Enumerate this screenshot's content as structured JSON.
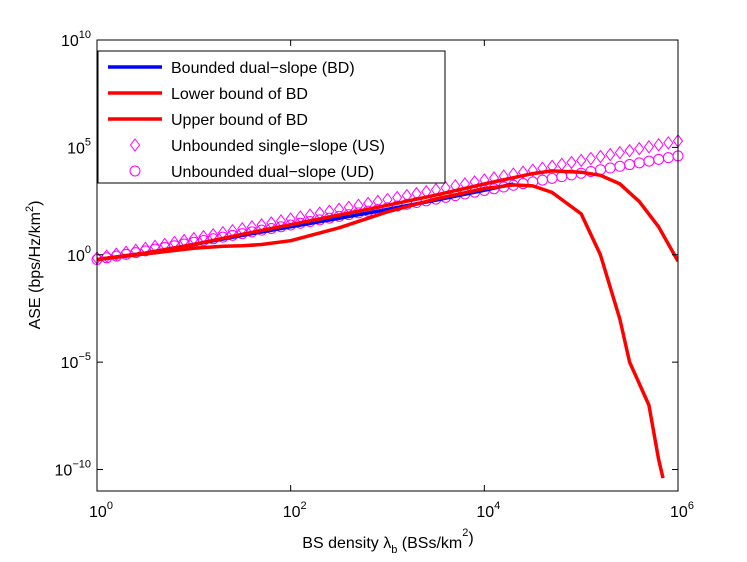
{
  "chart_data": {
    "type": "line",
    "xlabel": "BS density λ_b (BSs/km²)",
    "ylabel": "ASE (bps/Hz/km²)",
    "xscale": "log",
    "yscale": "log",
    "xlim": [
      1,
      1000000
    ],
    "ylim": [
      1e-11,
      10000000000.0
    ],
    "grid": false,
    "legend_position": "top-left",
    "x_ticks": [
      {
        "value": 1,
        "base": "10",
        "exp": "0"
      },
      {
        "value": 100,
        "base": "10",
        "exp": "2"
      },
      {
        "value": 10000,
        "base": "10",
        "exp": "4"
      },
      {
        "value": 1000000,
        "base": "10",
        "exp": "6"
      }
    ],
    "y_ticks": [
      {
        "value": 1e-10,
        "base": "10",
        "exp": "−10"
      },
      {
        "value": 1e-05,
        "base": "10",
        "exp": "−5"
      },
      {
        "value": 1,
        "base": "10",
        "exp": "0"
      },
      {
        "value": 100000,
        "base": "10",
        "exp": "5"
      },
      {
        "value": 10000000000,
        "base": "10",
        "exp": "10"
      }
    ],
    "series": [
      {
        "name": "Bounded dual−slope (BD)",
        "style": "line",
        "color": "#0000ff",
        "x": [
          1,
          3.16,
          10,
          31.6,
          100,
          316,
          1000,
          3162,
          10000,
          20000
        ],
        "y": [
          0.6,
          1.2,
          3,
          8,
          20,
          50,
          130,
          350,
          1000,
          2000
        ]
      },
      {
        "name": "Lower bound of BD",
        "style": "line",
        "color": "#ff0000",
        "x": [
          1,
          3.16,
          10,
          20,
          31.6,
          50,
          100,
          316,
          1000,
          3162,
          10000,
          20000,
          31623,
          50000,
          100000,
          158000,
          251000,
          316000,
          398000,
          501000,
          631000,
          700000
        ],
        "y": [
          0.6,
          1.1,
          2.0,
          2.5,
          2.6,
          3.0,
          4.5,
          18,
          100,
          400,
          1200,
          1800,
          1600,
          800,
          80,
          1,
          0.001,
          1e-05,
          1e-06,
          1e-07,
          3e-10,
          4e-11
        ]
      },
      {
        "name": "Upper bound of BD",
        "style": "line",
        "color": "#ff0000",
        "x": [
          1,
          3.16,
          10,
          31.6,
          100,
          316,
          1000,
          3162,
          10000,
          31623,
          50000,
          100000,
          158000,
          251000,
          398000,
          631000,
          1000000
        ],
        "y": [
          0.6,
          1.2,
          3,
          9,
          25,
          70,
          200,
          600,
          2000,
          6000,
          8000,
          7000,
          5000,
          2000,
          300,
          20,
          0.5
        ]
      },
      {
        "name": "Unbounded single−slope (US)",
        "style": "marker",
        "marker": "diamond",
        "color": "#ff00ff",
        "x": [
          1,
          1000000
        ],
        "y": [
          0.7,
          200000
        ]
      },
      {
        "name": "Unbounded dual−slope (UD)",
        "style": "marker",
        "marker": "circle",
        "color": "#ff00ff",
        "x": [
          1,
          1000000
        ],
        "y": [
          0.6,
          40000
        ]
      }
    ]
  }
}
